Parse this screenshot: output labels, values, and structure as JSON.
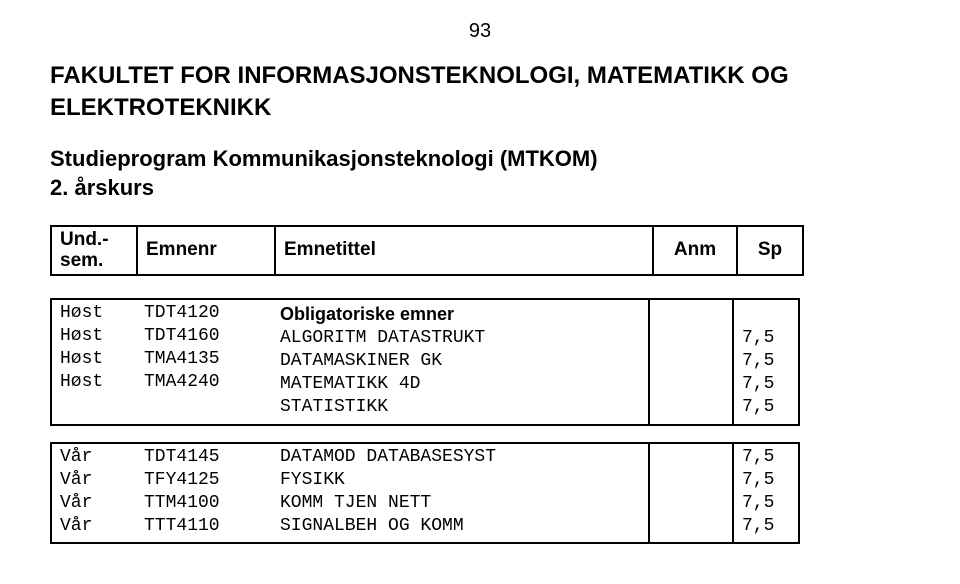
{
  "page_number": "93",
  "title_line1": "FAKULTET FOR INFORMASJONSTEKNOLOGI, MATEMATIKK OG",
  "title_line2": "ELEKTROTEKNIKK",
  "subtitle": "Studieprogram Kommunikasjonsteknologi (MTKOM)",
  "year_line": "2. årskurs",
  "header": {
    "sem_line1": "Und.-",
    "sem_line2": "sem.",
    "emnenr": "Emnenr",
    "emnetittel": "Emnetittel",
    "anm": "Anm",
    "sp": "Sp"
  },
  "section1_heading": "Obligatoriske emner",
  "block1": {
    "sem": "Høst\nHøst\nHøst\nHøst",
    "emnr": "TDT4120\nTDT4160\nTMA4135\nTMA4240",
    "tit": "ALGORITM DATASTRUKT\nDATAMASKINER GK\nMATEMATIKK 4D\nSTATISTIKK",
    "anm": "",
    "sp": "7,5\n7,5\n7,5\n7,5"
  },
  "block2": {
    "sem": "Vår\nVår\nVår\nVår",
    "emnr": "TDT4145\nTFY4125\nTTM4100\nTTT4110",
    "tit": "DATAMOD DATABASESYST\nFYSIKK\nKOMM TJEN NETT\nSIGNALBEH OG KOMM",
    "anm": "",
    "sp": "7,5\n7,5\n7,5\n7,5"
  }
}
